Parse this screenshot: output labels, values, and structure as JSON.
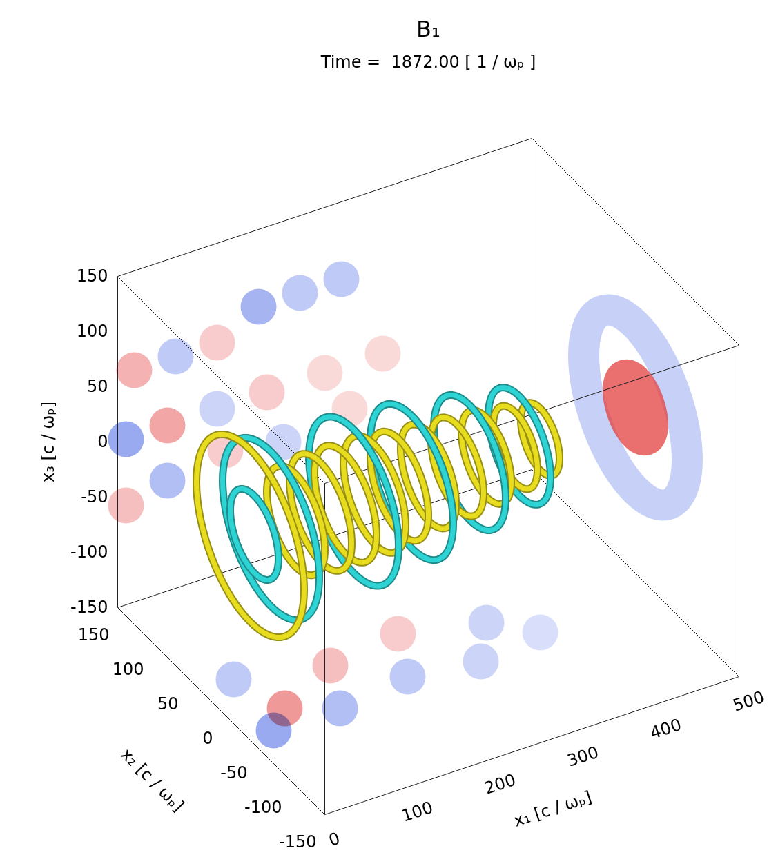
{
  "chart_data": {
    "type": "isosurface_3d",
    "title": "B₁",
    "subtitle": "Time =  1872.00 [ 1 / ωₚ ]",
    "x_label": "x₁ [c / ωₚ]",
    "xlim": [
      0,
      500
    ],
    "xticks": [
      0,
      100,
      200,
      300,
      400,
      500
    ],
    "y_label": "x₂ [c / ωₚ]",
    "ylim": [
      -150,
      150
    ],
    "yticks": [
      -150,
      -100,
      -50,
      0,
      50,
      100,
      150
    ],
    "z_label": "x₃ [c / ωₚ]",
    "zlim": [
      -150,
      150
    ],
    "zticks": [
      -150,
      -100,
      -50,
      0,
      50,
      100,
      150
    ],
    "ring_center": [
      0,
      0
    ],
    "surfaces": [
      {
        "color": "#e8dc1e",
        "rings": [
          {
            "x1": 35,
            "r": 78
          },
          {
            "x1": 90,
            "r": 42
          },
          {
            "x1": 120,
            "r": 45
          },
          {
            "x1": 150,
            "r": 45
          },
          {
            "x1": 185,
            "r": 45
          },
          {
            "x1": 215,
            "r": 42
          },
          {
            "x1": 250,
            "r": 40
          },
          {
            "x1": 285,
            "r": 38
          },
          {
            "x1": 320,
            "r": 36
          },
          {
            "x1": 355,
            "r": 32
          },
          {
            "x1": 385,
            "r": 28
          }
        ]
      },
      {
        "color": "#2ed3d3",
        "rings": [
          {
            "x1": 40,
            "r": 35
          },
          {
            "x1": 60,
            "r": 70
          },
          {
            "x1": 160,
            "r": 65
          },
          {
            "x1": 230,
            "r": 60
          },
          {
            "x1": 300,
            "r": 52
          },
          {
            "x1": 360,
            "r": 45
          }
        ]
      }
    ],
    "clim": [
      -1,
      1
    ],
    "colormap": [
      "#2a4fe0",
      "#ffffff",
      "#e02a2a"
    ],
    "wall_x2": [
      {
        "x1": 10,
        "x3": 0,
        "value": -0.8
      },
      {
        "x1": 60,
        "x3": 0,
        "value": 0.7
      },
      {
        "x1": 120,
        "x3": 0,
        "value": -0.4
      },
      {
        "x1": 180,
        "x3": 0,
        "value": 0.4
      },
      {
        "x1": 250,
        "x3": 0,
        "value": 0.3
      },
      {
        "x1": 320,
        "x3": 0,
        "value": 0.3
      },
      {
        "x1": 20,
        "x3": 60,
        "value": 0.6
      },
      {
        "x1": 70,
        "x3": 60,
        "value": -0.5
      },
      {
        "x1": 120,
        "x3": 60,
        "value": 0.4
      },
      {
        "x1": 170,
        "x3": 80,
        "value": -0.7
      },
      {
        "x1": 220,
        "x3": 80,
        "value": -0.5
      },
      {
        "x1": 270,
        "x3": 80,
        "value": -0.5
      },
      {
        "x1": 10,
        "x3": -60,
        "value": 0.5
      },
      {
        "x1": 60,
        "x3": -50,
        "value": -0.6
      },
      {
        "x1": 130,
        "x3": -40,
        "value": 0.4
      },
      {
        "x1": 200,
        "x3": -50,
        "value": -0.4
      },
      {
        "x1": 280,
        "x3": -40,
        "value": 0.3
      }
    ],
    "wall_x3": [
      {
        "x1": 30,
        "x2": -40,
        "value": -0.8
      },
      {
        "x1": 60,
        "x2": -20,
        "value": 0.8
      },
      {
        "x1": 40,
        "x2": 30,
        "value": -0.5
      },
      {
        "x1": 110,
        "x2": -40,
        "value": -0.6
      },
      {
        "x1": 140,
        "x2": 10,
        "value": 0.5
      },
      {
        "x1": 200,
        "x2": -30,
        "value": -0.5
      },
      {
        "x1": 230,
        "x2": 20,
        "value": 0.4
      },
      {
        "x1": 280,
        "x2": -40,
        "value": -0.4
      },
      {
        "x1": 320,
        "x2": 0,
        "value": -0.4
      },
      {
        "x1": 360,
        "x2": -30,
        "value": -0.3
      }
    ],
    "wall_x1": [
      {
        "r": 75,
        "value": -0.35
      },
      {
        "r": 25,
        "value": 0.9
      }
    ]
  }
}
